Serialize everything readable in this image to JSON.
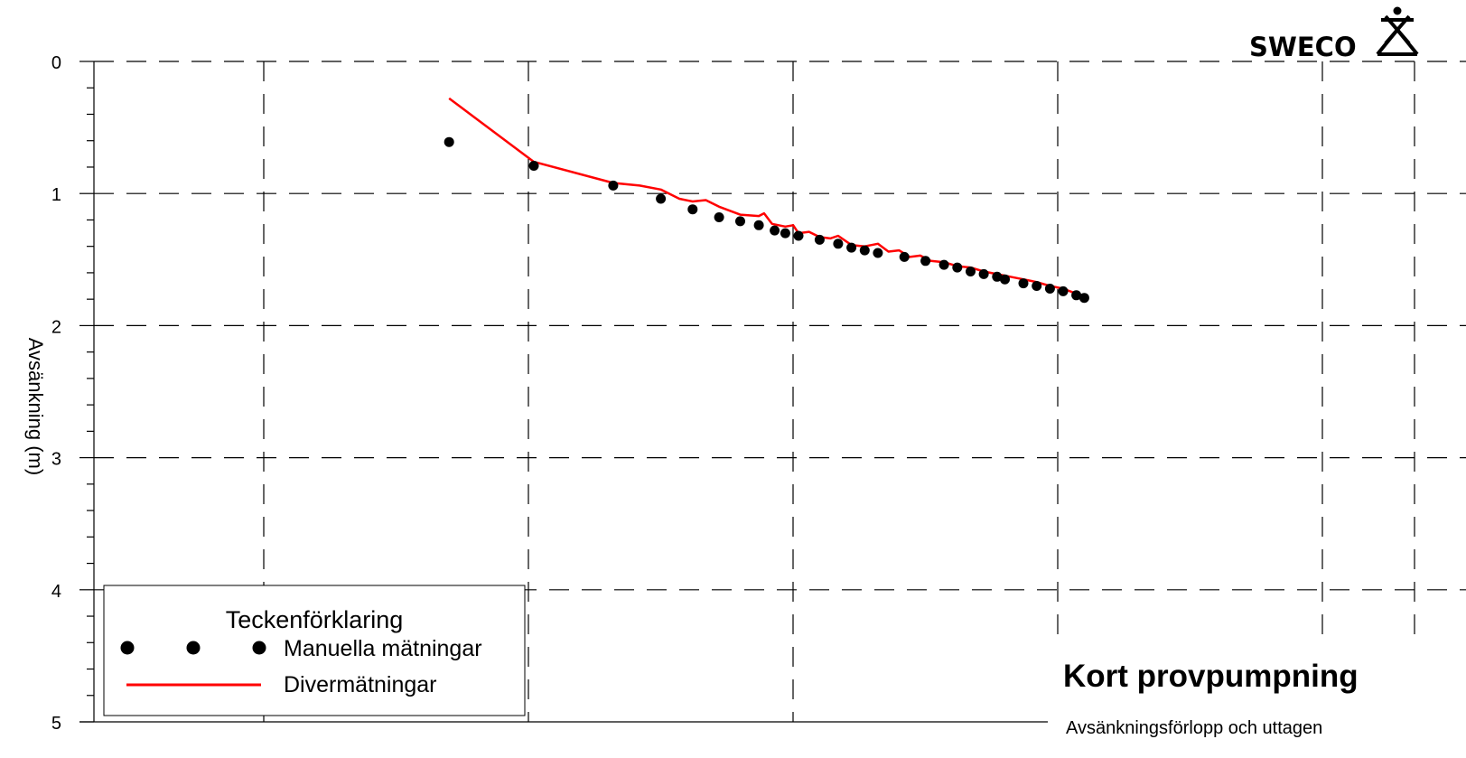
{
  "logo": {
    "text": "SWECO"
  },
  "panel": {
    "title": "Kort provpumpning",
    "subtitle": "Avsänkningsförlopp och uttagen"
  },
  "legend": {
    "title": "Teckenförklaring",
    "position": "bottom-left"
  },
  "colors": {
    "line": "#ff0000",
    "points": "#000000",
    "grid": "#000000"
  },
  "chart_data": {
    "type": "scatter",
    "title": "",
    "xlabel": "",
    "ylabel": "Avsänkning (m)",
    "ylim": [
      0,
      5
    ],
    "y_inverted": true,
    "yticks": [
      "0",
      "1",
      "2",
      "3",
      "4",
      "5"
    ],
    "xticks": [],
    "grid": true,
    "grid_style": "dashed",
    "series": [
      {
        "name": "Manuella mätningar",
        "kind": "scatter",
        "points": [
          [
            1.68,
            0.61
          ],
          [
            2.0,
            0.79
          ],
          [
            2.3,
            0.94
          ],
          [
            2.48,
            1.04
          ],
          [
            2.6,
            1.12
          ],
          [
            2.7,
            1.18
          ],
          [
            2.78,
            1.21
          ],
          [
            2.85,
            1.24
          ],
          [
            2.91,
            1.28
          ],
          [
            2.95,
            1.3
          ],
          [
            3.0,
            1.32
          ],
          [
            3.08,
            1.35
          ],
          [
            3.15,
            1.38
          ],
          [
            3.2,
            1.41
          ],
          [
            3.25,
            1.43
          ],
          [
            3.3,
            1.45
          ],
          [
            3.4,
            1.48
          ],
          [
            3.48,
            1.51
          ],
          [
            3.55,
            1.54
          ],
          [
            3.6,
            1.56
          ],
          [
            3.65,
            1.59
          ],
          [
            3.7,
            1.61
          ],
          [
            3.75,
            1.63
          ],
          [
            3.78,
            1.65
          ],
          [
            3.85,
            1.68
          ],
          [
            3.9,
            1.7
          ],
          [
            3.95,
            1.72
          ],
          [
            4.0,
            1.74
          ],
          [
            4.05,
            1.77
          ],
          [
            4.08,
            1.79
          ]
        ]
      },
      {
        "name": "Divermätningar",
        "kind": "line",
        "points": [
          [
            1.68,
            0.28
          ],
          [
            2.0,
            0.76
          ],
          [
            2.3,
            0.92
          ],
          [
            2.4,
            0.94
          ],
          [
            2.48,
            0.97
          ],
          [
            2.55,
            1.04
          ],
          [
            2.6,
            1.06
          ],
          [
            2.65,
            1.05
          ],
          [
            2.7,
            1.1
          ],
          [
            2.78,
            1.16
          ],
          [
            2.85,
            1.17
          ],
          [
            2.87,
            1.15
          ],
          [
            2.9,
            1.23
          ],
          [
            2.95,
            1.25
          ],
          [
            2.98,
            1.24
          ],
          [
            3.0,
            1.3
          ],
          [
            3.04,
            1.29
          ],
          [
            3.08,
            1.33
          ],
          [
            3.12,
            1.34
          ],
          [
            3.15,
            1.32
          ],
          [
            3.2,
            1.39
          ],
          [
            3.25,
            1.4
          ],
          [
            3.3,
            1.38
          ],
          [
            3.34,
            1.44
          ],
          [
            3.38,
            1.43
          ],
          [
            3.42,
            1.48
          ],
          [
            3.46,
            1.47
          ],
          [
            3.5,
            1.51
          ],
          [
            3.55,
            1.52
          ],
          [
            3.6,
            1.55
          ],
          [
            3.65,
            1.56
          ],
          [
            3.7,
            1.59
          ],
          [
            3.75,
            1.61
          ],
          [
            3.8,
            1.63
          ],
          [
            3.85,
            1.65
          ],
          [
            3.9,
            1.67
          ],
          [
            3.95,
            1.7
          ],
          [
            4.0,
            1.72
          ],
          [
            4.04,
            1.75
          ],
          [
            4.06,
            1.77
          ],
          [
            4.08,
            1.79
          ]
        ]
      }
    ]
  }
}
